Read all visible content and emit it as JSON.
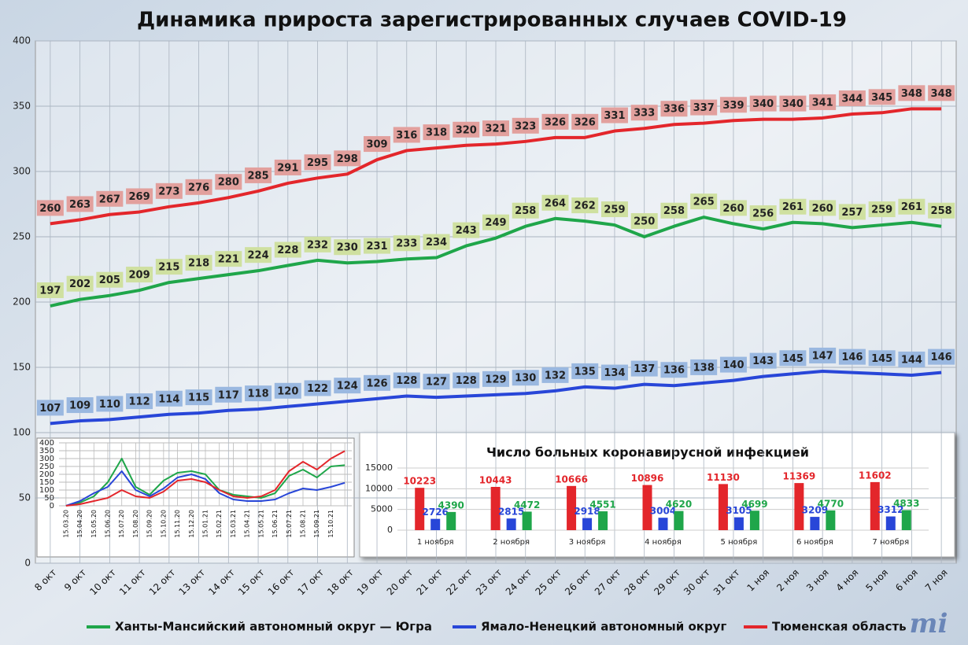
{
  "chart_data": [
    {
      "type": "line",
      "title": "Динамика прироста зарегистрированных случаев COVID-19",
      "categories": [
        "8 окт",
        "9 окт",
        "10 окт",
        "11 окт",
        "12 окт",
        "13 окт",
        "14 окт",
        "15 окт",
        "16 окт",
        "17 окт",
        "18 окт",
        "19 окт",
        "20 окт",
        "21 окт",
        "22 окт",
        "23 окт",
        "24 окт",
        "25 окт",
        "26 окт",
        "27 окт",
        "28 окт",
        "29 окт",
        "30 окт",
        "31 окт",
        "1 ноя",
        "2 ноя",
        "3 ноя",
        "4 ноя",
        "5 ноя",
        "6 ноя",
        "7 ноя"
      ],
      "series": [
        {
          "name": "Ханты-Мансийский автономный округ — Югра",
          "color": "#1fa64a",
          "label_color": "#cfe0a0",
          "values": [
            197,
            202,
            205,
            209,
            215,
            218,
            221,
            224,
            228,
            232,
            230,
            231,
            233,
            234,
            243,
            249,
            258,
            264,
            262,
            259,
            250,
            258,
            265,
            260,
            256,
            261,
            260,
            257,
            259,
            261,
            258
          ]
        },
        {
          "name": "Ямало-Ненецкий автономный округ",
          "color": "#2846d8",
          "label_color": "#9ab8e0",
          "values": [
            107,
            109,
            110,
            112,
            114,
            115,
            117,
            118,
            120,
            122,
            124,
            126,
            128,
            127,
            128,
            129,
            130,
            132,
            135,
            134,
            137,
            136,
            138,
            140,
            143,
            145,
            147,
            146,
            145,
            144,
            146
          ]
        },
        {
          "name": "Тюменская область",
          "color": "#e3262b",
          "label_color": "#e2a09d",
          "values": [
            260,
            263,
            267,
            269,
            273,
            276,
            280,
            285,
            291,
            295,
            298,
            309,
            316,
            318,
            320,
            321,
            323,
            326,
            326,
            331,
            333,
            336,
            337,
            339,
            340,
            340,
            341,
            344,
            345,
            348,
            348
          ]
        }
      ],
      "ylim": [
        0,
        400
      ],
      "yticks": [
        0,
        50,
        100,
        150,
        200,
        250,
        300,
        350,
        400
      ],
      "grid": true,
      "legend": "bottom"
    },
    {
      "type": "line",
      "categories": [
        "15.03.20",
        "15.04.20",
        "15.05.20",
        "15.06.20",
        "15.07.20",
        "15.08.20",
        "15.09.20",
        "15.10.20",
        "15.11.20",
        "15.12.20",
        "15.01.21",
        "15.02.21",
        "15.03.21",
        "15.04.21",
        "15.05.21",
        "15.06.21",
        "15.07.21",
        "15.08.21",
        "15.09.21",
        "15.10.21",
        null
      ],
      "series": [
        {
          "color": "#1fa64a",
          "values": [
            0,
            20,
            60,
            150,
            300,
            120,
            70,
            160,
            210,
            220,
            200,
            100,
            70,
            60,
            50,
            80,
            190,
            230,
            180,
            250,
            258
          ]
        },
        {
          "color": "#2846d8",
          "values": [
            0,
            30,
            80,
            120,
            220,
            100,
            60,
            110,
            180,
            200,
            170,
            80,
            40,
            30,
            30,
            40,
            80,
            110,
            100,
            120,
            146
          ]
        },
        {
          "color": "#e3262b",
          "values": [
            0,
            10,
            30,
            50,
            100,
            60,
            50,
            90,
            160,
            170,
            150,
            100,
            60,
            50,
            60,
            100,
            220,
            280,
            230,
            300,
            348
          ]
        }
      ],
      "ylim": [
        0,
        400
      ],
      "yticks": [
        0,
        50,
        100,
        150,
        200,
        250,
        300,
        350,
        400
      ],
      "grid": true
    },
    {
      "type": "bar",
      "title": "Число больных коронавирусной инфекцией",
      "categories": [
        "1 ноября",
        "2 ноября",
        "3 ноября",
        "4 ноября",
        "5 ноября",
        "6 ноября",
        "7 ноября"
      ],
      "series": [
        {
          "color": "#e3262b",
          "values": [
            10223,
            10443,
            10666,
            10896,
            11130,
            11369,
            11602
          ]
        },
        {
          "color": "#2846d8",
          "values": [
            2726,
            2815,
            2918,
            3004,
            3105,
            3209,
            3312
          ]
        },
        {
          "color": "#1fa64a",
          "values": [
            4390,
            4472,
            4551,
            4620,
            4699,
            4770,
            4833
          ]
        }
      ],
      "ylim": [
        0,
        15000
      ],
      "yticks": [
        0,
        5000,
        10000,
        15000
      ],
      "grid": true
    }
  ],
  "logo": "mi"
}
